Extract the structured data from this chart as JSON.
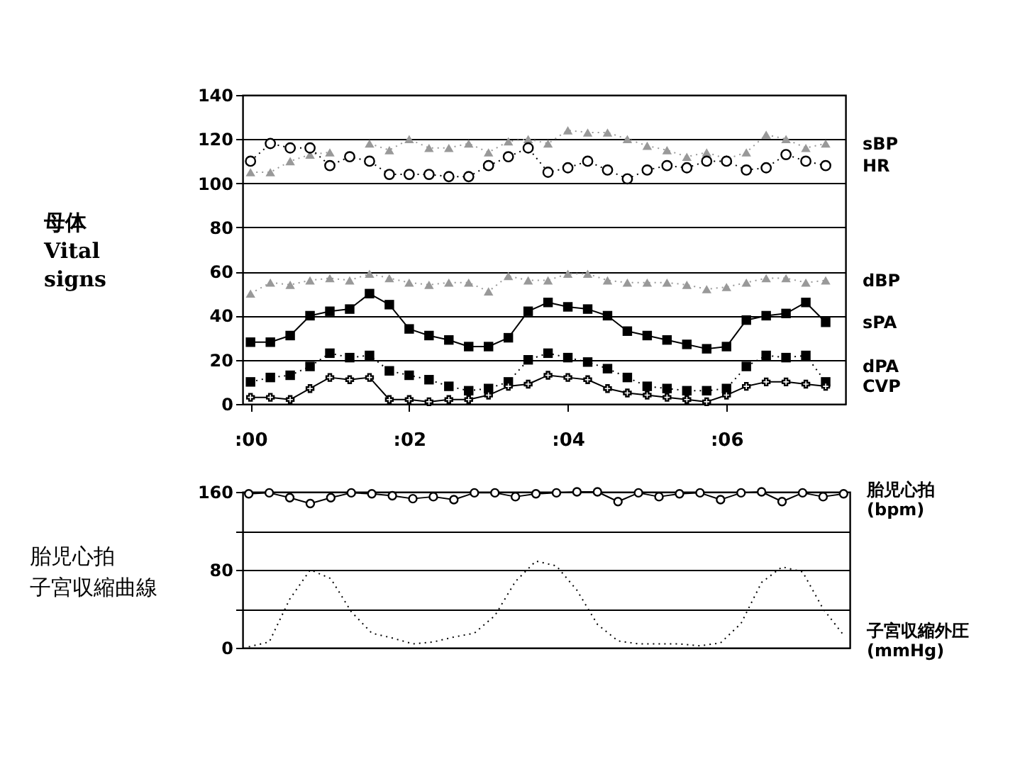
{
  "chart_data": [
    {
      "type": "line",
      "ylabel": "母体\nVital\nsigns",
      "x": [
        0,
        0.25,
        0.5,
        0.75,
        1,
        1.25,
        1.5,
        1.75,
        2,
        2.25,
        2.5,
        2.75,
        3,
        3.25,
        3.5,
        3.75,
        4,
        4.25,
        4.5,
        4.75,
        5,
        5.25,
        5.5,
        5.75,
        6,
        6.25,
        6.5,
        6.75,
        7,
        7.25
      ],
      "xlim": [
        -0.1,
        7.5
      ],
      "xticks": [
        {
          "value": 0,
          "label": ":00"
        },
        {
          "value": 2,
          "label": ":02"
        },
        {
          "value": 4,
          "label": ":04"
        },
        {
          "value": 6,
          "label": ":06"
        }
      ],
      "ylim": [
        0,
        140
      ],
      "yticks": [
        0,
        20,
        40,
        60,
        80,
        100,
        120,
        140
      ],
      "grid": "y",
      "legend": "right",
      "series": [
        {
          "name": "sBP",
          "color": "#999999",
          "marker": "triangle",
          "line_style": "dotted",
          "values": [
            105,
            105,
            110,
            113,
            114,
            null,
            118,
            115,
            120,
            116,
            116,
            118,
            114,
            119,
            120,
            118,
            124,
            123,
            123,
            120,
            117,
            115,
            112,
            114,
            111,
            114,
            122,
            120,
            116,
            118
          ]
        },
        {
          "name": "HR",
          "color": "#000000",
          "marker": "circle",
          "line_style": "dotted",
          "values": [
            110,
            118,
            116,
            116,
            108,
            112,
            110,
            104,
            104,
            104,
            103,
            103,
            108,
            112,
            116,
            105,
            107,
            110,
            106,
            102,
            106,
            108,
            107,
            110,
            110,
            106,
            107,
            113,
            110,
            108
          ]
        },
        {
          "name": "dBP",
          "color": "#999999",
          "marker": "triangle",
          "line_style": "dotted",
          "values": [
            50,
            55,
            54,
            56,
            57,
            56,
            59,
            57,
            55,
            54,
            55,
            55,
            51,
            58,
            56,
            56,
            59,
            59,
            56,
            55,
            55,
            55,
            54,
            52,
            53,
            55,
            57,
            57,
            55,
            56
          ]
        },
        {
          "name": "sPA",
          "color": "#000000",
          "marker": "square",
          "line_style": "solid",
          "values": [
            28,
            28,
            31,
            40,
            42,
            43,
            50,
            45,
            34,
            31,
            29,
            26,
            26,
            30,
            42,
            46,
            44,
            43,
            40,
            33,
            31,
            29,
            27,
            25,
            26,
            38,
            40,
            41,
            46,
            37
          ]
        },
        {
          "name": "dPA",
          "color": "#000000",
          "marker": "square",
          "line_style": "dotted",
          "values": [
            10,
            12,
            13,
            17,
            23,
            21,
            22,
            15,
            13,
            11,
            8,
            6,
            7,
            10,
            20,
            23,
            21,
            19,
            16,
            12,
            8,
            7,
            6,
            6,
            7,
            17,
            22,
            21,
            22,
            10
          ]
        },
        {
          "name": "CVP",
          "color": "#000000",
          "marker": "cross",
          "line_style": "solid",
          "values": [
            3,
            3,
            2,
            7,
            12,
            11,
            12,
            2,
            2,
            1,
            2,
            2,
            4,
            8,
            9,
            13,
            12,
            11,
            7,
            5,
            4,
            3,
            2,
            1,
            4,
            8,
            10,
            10,
            9,
            8
          ]
        }
      ]
    },
    {
      "type": "line",
      "annotations": [
        "胎児心拍",
        "子宮収縮曲線"
      ],
      "tick_labels": "y",
      "categories": [
        null,
        null,
        null,
        null,
        null,
        null,
        null,
        null,
        null,
        null,
        null,
        null,
        null,
        null,
        null,
        null,
        null,
        null,
        null,
        null,
        null,
        null,
        null,
        null,
        null,
        null,
        null,
        null,
        null,
        null
      ],
      "ylim": [
        0,
        160
      ],
      "yticks": [
        0,
        {
          "value": 40,
          "label": null
        },
        80,
        {
          "value": 120,
          "label": null
        },
        160
      ],
      "grid": "y",
      "legend": "right",
      "series": [
        {
          "name": "胎児心拍\n(bpm)",
          "color": "#000000",
          "marker": "circle",
          "line_style": "solid",
          "values": [
            158,
            159,
            154,
            148,
            154,
            159,
            158,
            156,
            153,
            155,
            152,
            159,
            159,
            155,
            158,
            159,
            160,
            160,
            150,
            159,
            155,
            158,
            159,
            152,
            159,
            160,
            150,
            159,
            155,
            158
          ]
        },
        {
          "name": "子宮収縮外圧\n(mmHg)",
          "color": "#000000",
          "marker": "none",
          "line_style": "dotted",
          "values": [
            1,
            6,
            50,
            80,
            71,
            37,
            15,
            10,
            4,
            6,
            11,
            15,
            33,
            68,
            89,
            84,
            59,
            24,
            7,
            4,
            4,
            4,
            2,
            5,
            25,
            67,
            83,
            78,
            40,
            13
          ]
        }
      ]
    }
  ]
}
